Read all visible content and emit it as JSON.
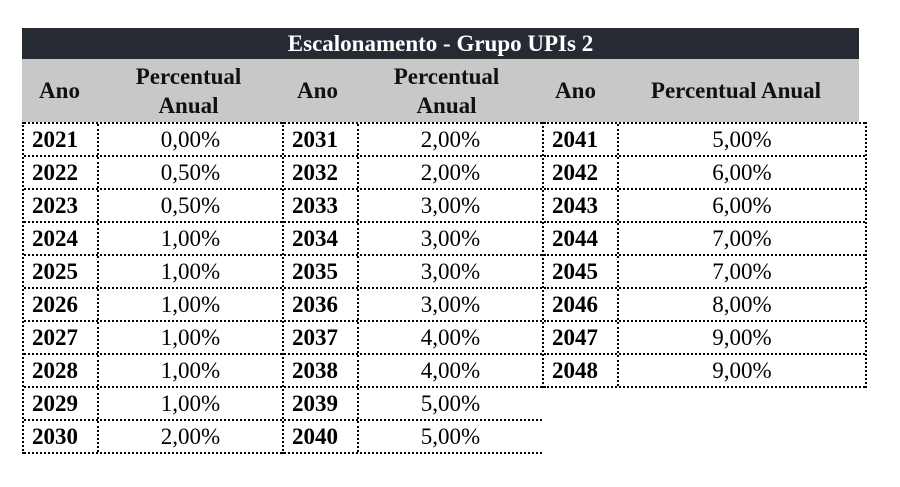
{
  "title": "Escalonamento - Grupo UPIs 2",
  "headers": {
    "year": "Ano",
    "pct_line1": "Percentual",
    "pct_line2": "Anual",
    "pct_full": "Percentual Anual"
  },
  "groups": [
    {
      "rows": [
        {
          "year": "2021",
          "pct": "0,00%"
        },
        {
          "year": "2022",
          "pct": "0,50%"
        },
        {
          "year": "2023",
          "pct": "0,50%"
        },
        {
          "year": "2024",
          "pct": "1,00%"
        },
        {
          "year": "2025",
          "pct": "1,00%"
        },
        {
          "year": "2026",
          "pct": "1,00%"
        },
        {
          "year": "2027",
          "pct": "1,00%"
        },
        {
          "year": "2028",
          "pct": "1,00%"
        },
        {
          "year": "2029",
          "pct": "1,00%"
        },
        {
          "year": "2030",
          "pct": "2,00%"
        }
      ]
    },
    {
      "rows": [
        {
          "year": "2031",
          "pct": "2,00%"
        },
        {
          "year": "2032",
          "pct": "2,00%"
        },
        {
          "year": "2033",
          "pct": "3,00%"
        },
        {
          "year": "2034",
          "pct": "3,00%"
        },
        {
          "year": "2035",
          "pct": "3,00%"
        },
        {
          "year": "2036",
          "pct": "3,00%"
        },
        {
          "year": "2037",
          "pct": "4,00%"
        },
        {
          "year": "2038",
          "pct": "4,00%"
        },
        {
          "year": "2039",
          "pct": "5,00%"
        },
        {
          "year": "2040",
          "pct": "5,00%"
        }
      ]
    },
    {
      "rows": [
        {
          "year": "2041",
          "pct": "5,00%"
        },
        {
          "year": "2042",
          "pct": "6,00%"
        },
        {
          "year": "2043",
          "pct": "6,00%"
        },
        {
          "year": "2044",
          "pct": "7,00%"
        },
        {
          "year": "2045",
          "pct": "7,00%"
        },
        {
          "year": "2046",
          "pct": "8,00%"
        },
        {
          "year": "2047",
          "pct": "9,00%"
        },
        {
          "year": "2048",
          "pct": "9,00%"
        }
      ]
    }
  ]
}
